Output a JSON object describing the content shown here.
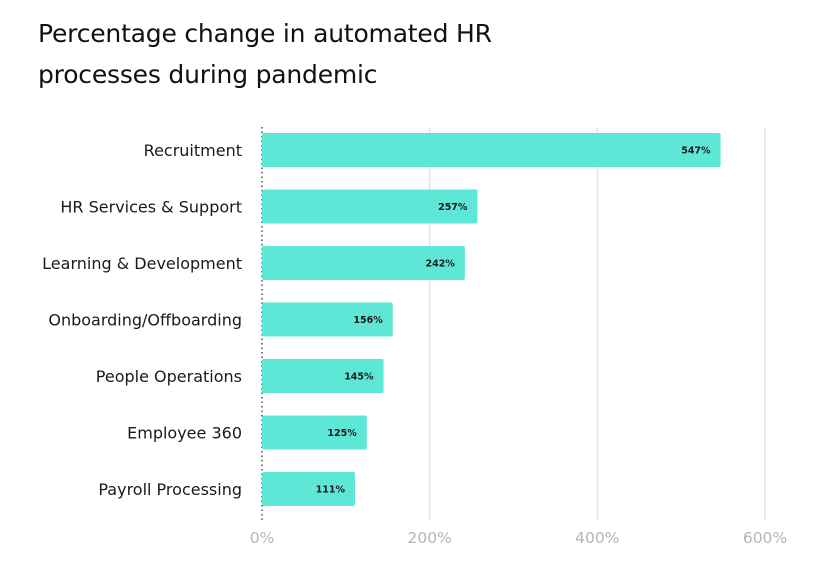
{
  "title_line1": "Percentage change in automated HR",
  "title_line2": "processes during pandemic",
  "chart_data": {
    "type": "bar",
    "orientation": "horizontal",
    "title": "Percentage change in automated HR processes during pandemic",
    "categories": [
      "Recruitment",
      "HR Services & Support",
      "Learning & Development",
      "Onboarding/Offboarding",
      "People Operations",
      "Employee 360",
      "Payroll Processing"
    ],
    "values": [
      547,
      257,
      242,
      156,
      145,
      125,
      111
    ],
    "value_labels": [
      "547%",
      "257%",
      "242%",
      "156%",
      "145%",
      "125%",
      "111%"
    ],
    "xlim": [
      0,
      600
    ],
    "xticks": [
      0,
      200,
      400,
      600
    ],
    "xtick_labels": [
      "0%",
      "200%",
      "400%",
      "600%"
    ],
    "grid": true,
    "bar_color": "#5ee6d6",
    "gridline_color": "#e3e3e3"
  }
}
